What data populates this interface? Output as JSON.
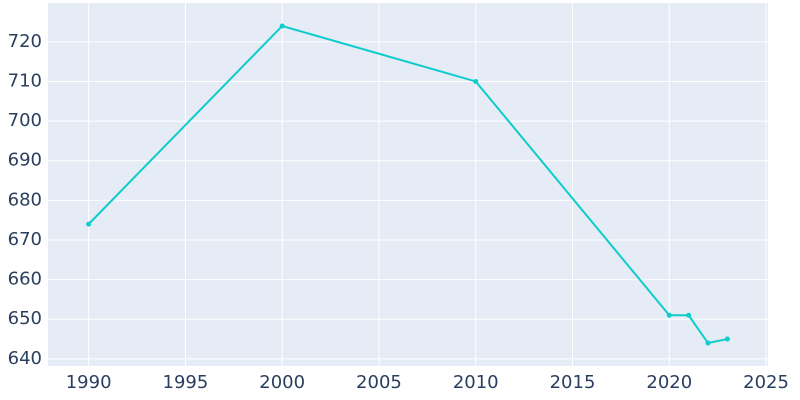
{
  "chart_data": {
    "type": "line",
    "x": [
      1990,
      2000,
      2010,
      2020,
      2021,
      2022,
      2023
    ],
    "series": [
      {
        "color": "#0fcccc",
        "values": [
          674,
          724,
          710,
          651,
          651,
          644,
          645
        ]
      }
    ],
    "xlim": [
      1987.9,
      2025.1
    ],
    "xticks": [
      1990,
      1995,
      2000,
      2005,
      2010,
      2015,
      2020,
      2025
    ],
    "ylim": [
      638.2,
      729.8
    ],
    "yticks": [
      640,
      650,
      660,
      670,
      680,
      690,
      700,
      710,
      720
    ],
    "grid": true
  }
}
